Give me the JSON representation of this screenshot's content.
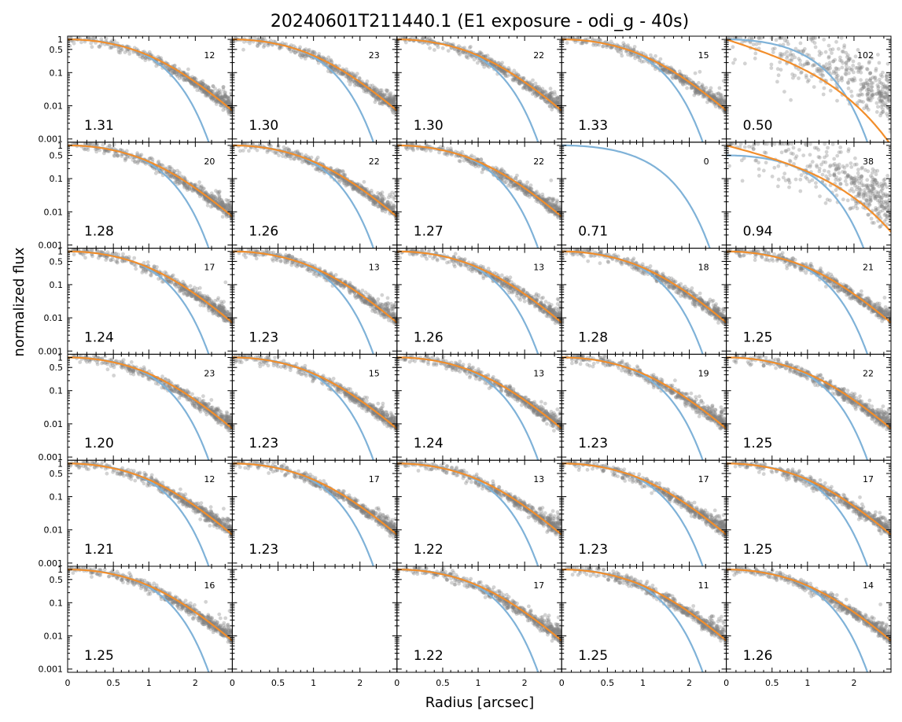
{
  "chart_data": {
    "type": "scatter",
    "title": "20240601T211440.1 (E1 exposure - odi_g - 40s)",
    "xlabel": "Radius [arcsec]",
    "ylabel": "normalized flux",
    "layout": {
      "rows": 6,
      "cols": 5
    },
    "x_axis": {
      "scale": "asinh",
      "ticks": [
        0,
        0.5,
        1,
        2
      ],
      "tick_labels": [
        "0",
        "0.5",
        "1",
        "2"
      ],
      "range": [
        0,
        3.3
      ]
    },
    "y_axis": {
      "scale": "log",
      "ticks": [
        1,
        0.5,
        0.1,
        0.01,
        0.001
      ],
      "tick_labels": [
        "1",
        "0.5",
        "0.1",
        "0.01",
        "0.001"
      ],
      "range": [
        0.0008,
        1.25
      ]
    },
    "colors": {
      "points": "#808080",
      "fit_blue": "#7fb2d8",
      "fit_orange": "#f28e2b"
    },
    "panels": [
      {
        "fwhm": "1.31",
        "count": "12",
        "empty": false
      },
      {
        "fwhm": "1.30",
        "count": "23",
        "empty": false
      },
      {
        "fwhm": "1.30",
        "count": "22",
        "empty": false
      },
      {
        "fwhm": "1.33",
        "count": "15",
        "empty": false
      },
      {
        "fwhm": "0.50",
        "count": "102",
        "empty": false,
        "bad": true
      },
      {
        "fwhm": "1.28",
        "count": "20",
        "empty": false
      },
      {
        "fwhm": "1.26",
        "count": "22",
        "empty": false
      },
      {
        "fwhm": "1.27",
        "count": "22",
        "empty": false
      },
      {
        "fwhm": "0.71",
        "count": "0",
        "empty": false,
        "nodata": true
      },
      {
        "fwhm": "0.94",
        "count": "38",
        "empty": false,
        "bad": true
      },
      {
        "fwhm": "1.24",
        "count": "17",
        "empty": false
      },
      {
        "fwhm": "1.23",
        "count": "13",
        "empty": false
      },
      {
        "fwhm": "1.26",
        "count": "13",
        "empty": false
      },
      {
        "fwhm": "1.28",
        "count": "18",
        "empty": false
      },
      {
        "fwhm": "1.25",
        "count": "21",
        "empty": false
      },
      {
        "fwhm": "1.20",
        "count": "23",
        "empty": false
      },
      {
        "fwhm": "1.23",
        "count": "15",
        "empty": false
      },
      {
        "fwhm": "1.24",
        "count": "13",
        "empty": false
      },
      {
        "fwhm": "1.23",
        "count": "19",
        "empty": false
      },
      {
        "fwhm": "1.25",
        "count": "22",
        "empty": false
      },
      {
        "fwhm": "1.21",
        "count": "12",
        "empty": false
      },
      {
        "fwhm": "1.23",
        "count": "17",
        "empty": false
      },
      {
        "fwhm": "1.22",
        "count": "13",
        "empty": false
      },
      {
        "fwhm": "1.23",
        "count": "17",
        "empty": false
      },
      {
        "fwhm": "1.25",
        "count": "17",
        "empty": false
      },
      {
        "fwhm": "1.25",
        "count": "16",
        "empty": false
      },
      {
        "fwhm": "",
        "count": "",
        "empty": true
      },
      {
        "fwhm": "1.22",
        "count": "17",
        "empty": false
      },
      {
        "fwhm": "1.25",
        "count": "11",
        "empty": false
      },
      {
        "fwhm": "1.26",
        "count": "14",
        "empty": false
      }
    ]
  }
}
